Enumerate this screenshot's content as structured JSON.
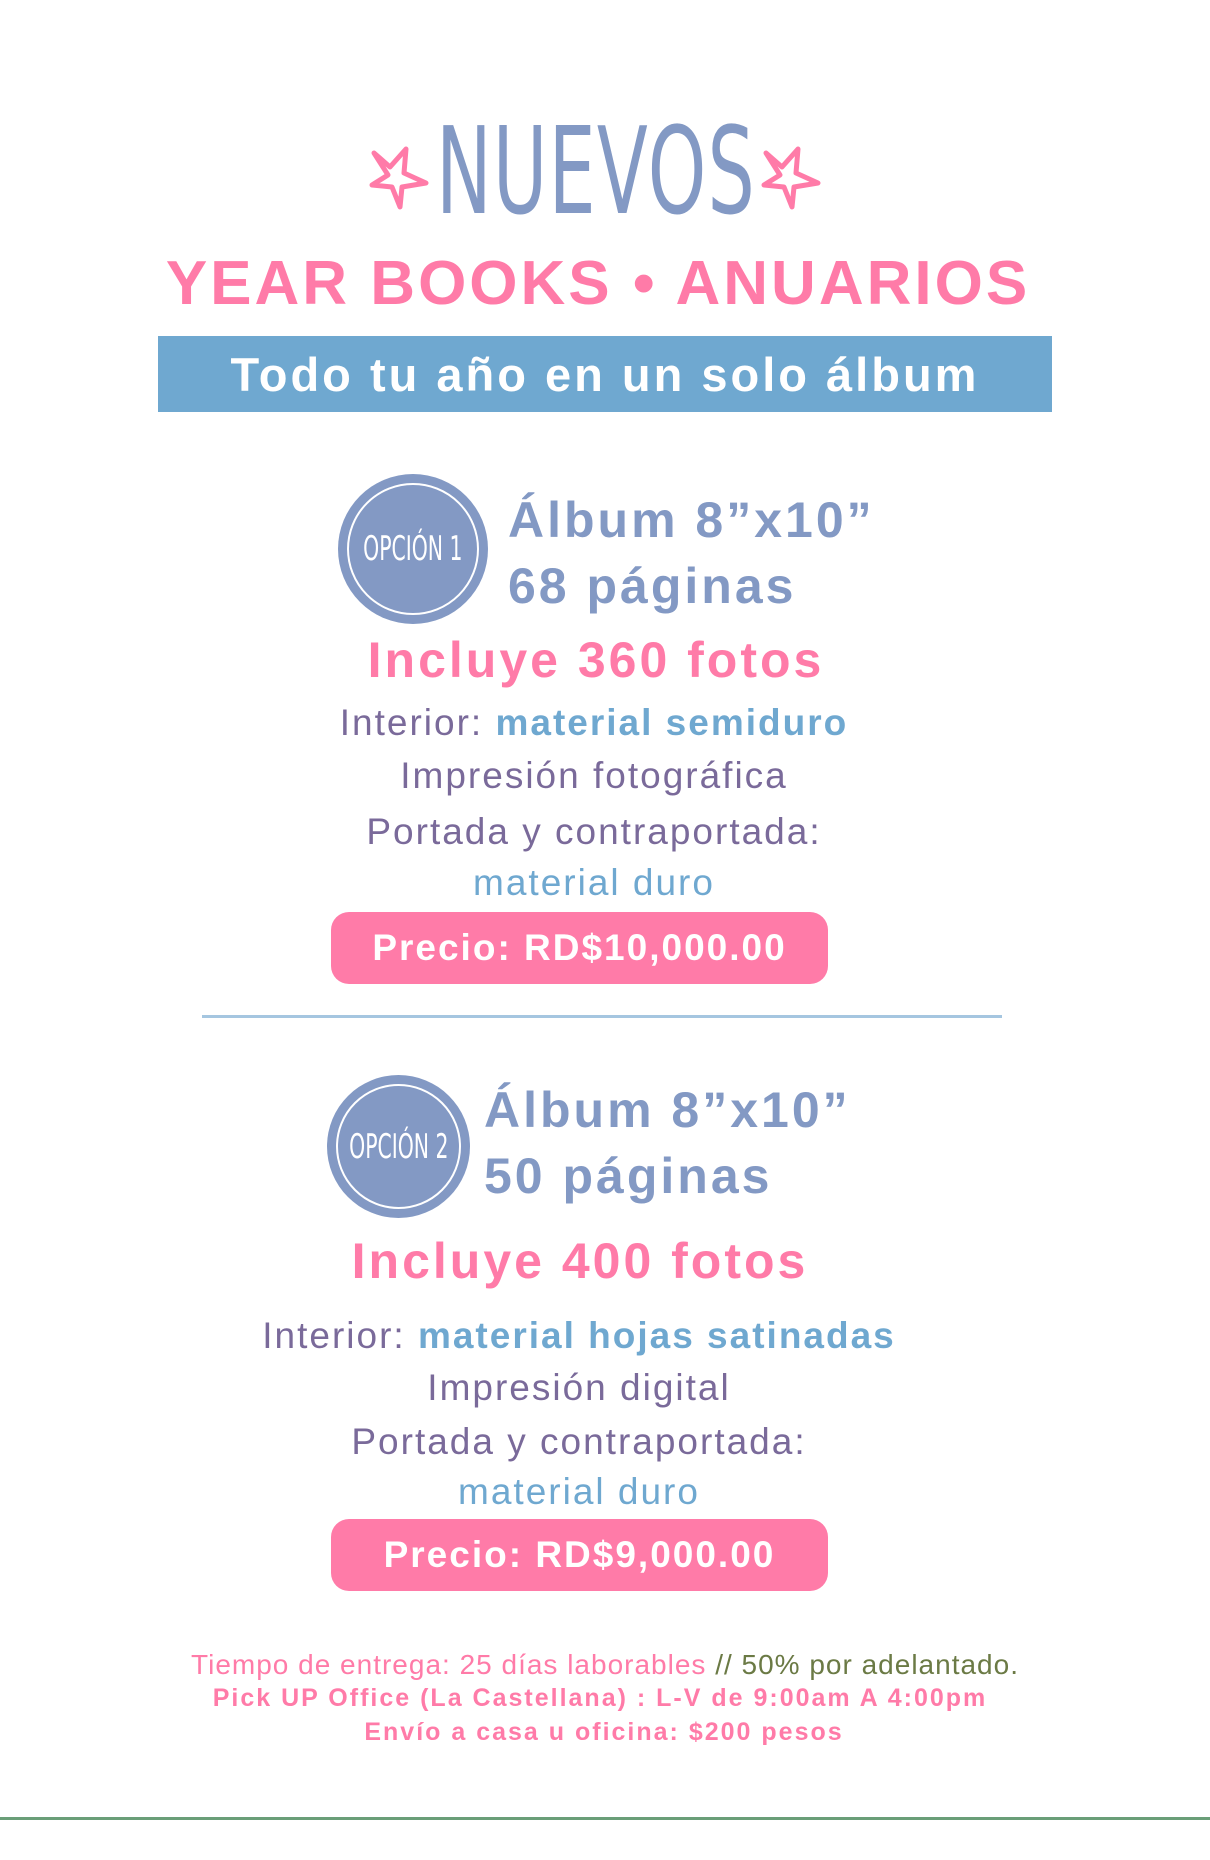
{
  "header": {
    "title": "NUEVOS",
    "subtitle": "YEAR BOOKS • ANUARIOS",
    "tagline": "Todo tu año en un solo álbum",
    "decoration_icon": "star-outline-icon"
  },
  "options": [
    {
      "badge": "OPCIÓN 1",
      "size": "Álbum 8”x10”",
      "pages": "68 páginas",
      "photos": "Incluye 360 fotos",
      "interior_label": "Interior:",
      "interior_value": "material semiduro",
      "print": "Impresión fotográfica",
      "cover_label": "Portada y contraportada:",
      "cover_value": "material duro",
      "price": "Precio: RD$10,000.00"
    },
    {
      "badge": "OPCIÓN 2",
      "size": "Álbum 8”x10”",
      "pages": "50 páginas",
      "photos": "Incluye 400 fotos",
      "interior_label": "Interior:",
      "interior_value": "material hojas satinadas",
      "print": "Impresión digital",
      "cover_label": "Portada y contraportada:",
      "cover_value": "material duro",
      "price": "Precio: RD$9,000.00"
    }
  ],
  "footer": {
    "delivery": "Tiempo de entrega: 25 días laborables",
    "deposit": "// 50% por adelantado.",
    "pickup": "Pick UP Office (La Castellana) : L-V de 9:00am A 4:00pm",
    "shipping": "Envío a casa u oficina: $200 pesos"
  },
  "colors": {
    "periwinkle": "#8399c4",
    "pink": "#ff7ba8",
    "sky_blue": "#6fa8d0",
    "purple_text": "#7a6a9a",
    "olive": "#6b7a45"
  }
}
